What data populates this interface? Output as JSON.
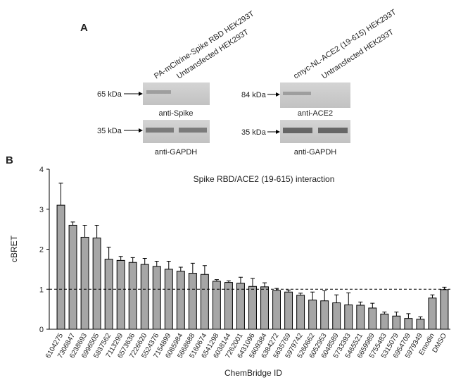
{
  "panel_a": {
    "label": "A",
    "left": {
      "lanes": [
        "PA-mCitrine-Spike RBD HEK293T",
        "Untransfected HEK293T"
      ],
      "markers": [
        "65 kDa",
        "35 kDa"
      ],
      "antibodies": [
        "anti-Spike",
        "anti-GAPDH"
      ]
    },
    "right": {
      "lanes": [
        "cmyc-NL-ACE2 (19-615) HEK293T",
        "Untransfected HEK293T"
      ],
      "markers": [
        "84 kDa",
        "35 kDa"
      ],
      "antibodies": [
        "anti-ACE2",
        "anti-GAPDH"
      ]
    }
  },
  "panel_b_label": "B",
  "chart_data": {
    "type": "bar",
    "title": "Spike RBD/ACE2 (19-615) interaction",
    "x_label": "ChemBridge ID",
    "y_label": "cBRET",
    "categories": [
      "6104275",
      "7306847",
      "6238693",
      "6996505",
      "5837562",
      "7113299",
      "6573636",
      "7226620",
      "5524376",
      "7154899",
      "6085984",
      "5668688",
      "5160674",
      "6541298",
      "6038144",
      "7262001",
      "6431096",
      "5609384",
      "6384272",
      "5635769",
      "5979742",
      "5260662",
      "6052953",
      "6048589",
      "5733393",
      "5465521",
      "6659989",
      "5755483",
      "5315079",
      "6954709",
      "5979349",
      "Emodin",
      "DMSO"
    ],
    "values": [
      3.1,
      2.6,
      2.3,
      2.28,
      1.75,
      1.72,
      1.67,
      1.62,
      1.57,
      1.5,
      1.45,
      1.4,
      1.37,
      1.2,
      1.17,
      1.15,
      1.07,
      1.06,
      0.97,
      0.93,
      0.85,
      0.73,
      0.71,
      0.66,
      0.61,
      0.6,
      0.53,
      0.38,
      0.33,
      0.27,
      0.25,
      0.78,
      0.99
    ],
    "errors": [
      0.55,
      0.08,
      0.3,
      0.32,
      0.3,
      0.1,
      0.12,
      0.15,
      0.13,
      0.2,
      0.1,
      0.25,
      0.22,
      0.04,
      0.04,
      0.15,
      0.2,
      0.1,
      0.05,
      0.05,
      0.05,
      0.2,
      0.25,
      0.2,
      0.3,
      0.08,
      0.12,
      0.05,
      0.1,
      0.12,
      0.06,
      0.08,
      0.06
    ],
    "color": "#a6a6a6",
    "ylim": [
      0,
      4
    ],
    "yticks": [
      0,
      1,
      2,
      3,
      4
    ],
    "reference_line": 1
  }
}
